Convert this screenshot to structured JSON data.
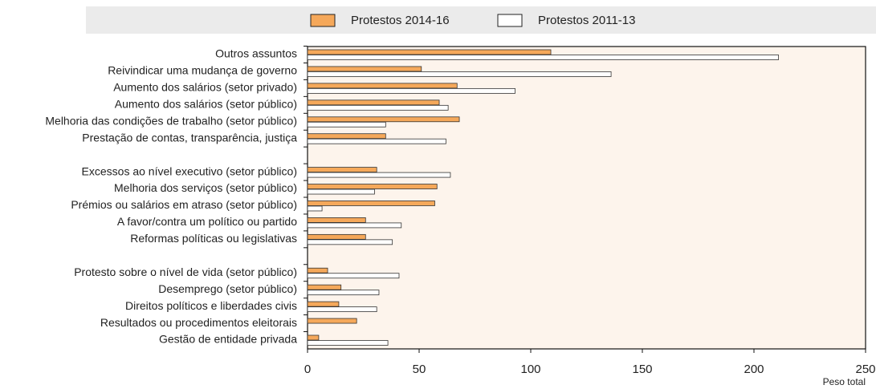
{
  "chart_data": {
    "type": "bar",
    "orientation": "horizontal",
    "x_label": "Peso total",
    "categories": [
      "Outros assuntos",
      "Reivindicar uma mudança de governo",
      "Aumento dos salários (setor privado)",
      "Aumento dos salários  (setor público)",
      "Melhoria das condições de trabalho  (setor público)",
      "Prestação de contas, transparência, justiça",
      null,
      "Excessos ao nível executivo (setor público)",
      "Melhoria dos serviços (setor público)",
      "Prémios ou salários em atraso  (setor público)",
      "A favor/contra um político ou partido",
      "Reformas políticas ou legislativas",
      null,
      "Protesto sobre o nível de vida  (setor público)",
      "Desemprego (setor público)",
      "Direitos políticos e liberdades civis",
      "Resultados ou procedimentos eleitorais",
      "Gestão de entidade privada"
    ],
    "series": [
      {
        "name": "Protestos 2014-16",
        "color": "#f5a85a",
        "values": [
          109,
          51,
          67,
          59,
          68,
          35,
          null,
          31,
          58,
          57,
          26,
          26,
          null,
          9,
          15,
          14,
          22,
          5
        ]
      },
      {
        "name": "Protestos 2011-13",
        "color": "#ffffff",
        "values": [
          211,
          136,
          93,
          63,
          35,
          62,
          null,
          64,
          30,
          6.5,
          42,
          38,
          null,
          41,
          32,
          31,
          0,
          36
        ]
      }
    ],
    "xlim": [
      0,
      250
    ],
    "xticks": [
      0,
      50,
      100,
      150,
      200,
      250
    ]
  }
}
